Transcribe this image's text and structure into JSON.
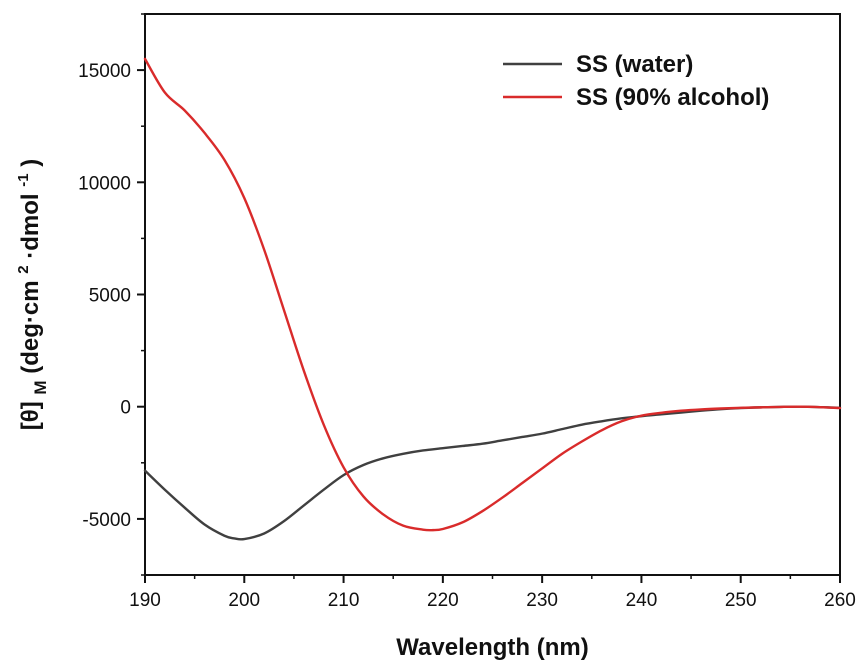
{
  "chart_data": {
    "type": "line",
    "xlabel": "Wavelength (nm)",
    "ylabel": {
      "base": "[θ]",
      "base_sub": "M",
      "open": "(deg·cm",
      "sup1": "2",
      "mid": "·dmol",
      "sup2": "-1",
      "close": ")"
    },
    "xlim": [
      190,
      260
    ],
    "ylim": [
      -7500,
      17500
    ],
    "xticks": [
      190,
      200,
      210,
      220,
      230,
      240,
      250,
      260
    ],
    "yticks": [
      -5000,
      0,
      5000,
      10000,
      15000
    ],
    "legend_position": "top-right",
    "grid": false,
    "series": [
      {
        "name": "SS (water)",
        "color": "#404040",
        "x": [
          190,
          192,
          194,
          196,
          198,
          199,
          200,
          202,
          204,
          206,
          208,
          210,
          212,
          214,
          216,
          218,
          220,
          222,
          224,
          226,
          228,
          230,
          232,
          234,
          236,
          238,
          240,
          242,
          244,
          246,
          248,
          250,
          252,
          254,
          256,
          258,
          260
        ],
        "y": [
          -2850,
          -3700,
          -4500,
          -5250,
          -5750,
          -5870,
          -5900,
          -5650,
          -5100,
          -4400,
          -3700,
          -3050,
          -2600,
          -2300,
          -2100,
          -1950,
          -1850,
          -1750,
          -1650,
          -1500,
          -1350,
          -1200,
          -1000,
          -800,
          -650,
          -520,
          -420,
          -340,
          -260,
          -180,
          -110,
          -60,
          -30,
          -10,
          0,
          -20,
          -50
        ]
      },
      {
        "name": "SS (90% alcohol)",
        "color": "#d92b2b",
        "x": [
          190,
          192,
          194,
          196,
          198,
          200,
          202,
          204,
          206,
          208,
          210,
          212,
          214,
          216,
          218,
          219,
          220,
          222,
          224,
          226,
          228,
          230,
          232,
          234,
          236,
          238,
          240,
          242,
          244,
          246,
          248,
          250,
          252,
          254,
          256,
          258,
          260
        ],
        "y": [
          15500,
          14000,
          13200,
          12200,
          11000,
          9300,
          7000,
          4300,
          1600,
          -800,
          -2700,
          -4000,
          -4800,
          -5300,
          -5480,
          -5500,
          -5450,
          -5150,
          -4650,
          -4050,
          -3400,
          -2750,
          -2100,
          -1550,
          -1050,
          -650,
          -400,
          -270,
          -180,
          -120,
          -80,
          -50,
          -30,
          -10,
          0,
          -20,
          -60
        ]
      }
    ]
  }
}
